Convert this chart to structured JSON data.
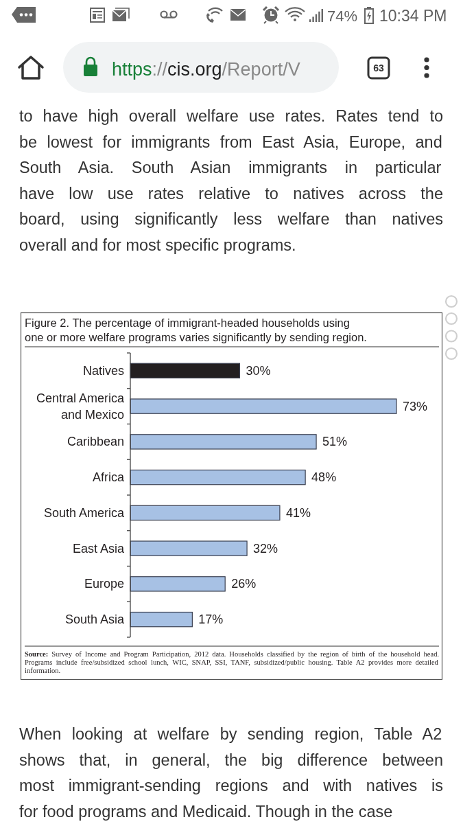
{
  "chart_data": {
    "type": "bar",
    "orientation": "horizontal",
    "title": "Figure 2. The percentage of immigrant-headed households using\none or more welfare programs varies significantly by sending region.",
    "categories": [
      "Natives",
      "Central America and Mexico",
      "Caribbean",
      "Africa",
      "South America",
      "East Asia",
      "Europe",
      "South Asia"
    ],
    "values": [
      30,
      73,
      51,
      48,
      41,
      32,
      26,
      17
    ],
    "colors": [
      "#231f20",
      "#a7c1e4",
      "#a7c1e4",
      "#a7c1e4",
      "#a7c1e4",
      "#a7c1e4",
      "#a7c1e4",
      "#a7c1e4"
    ],
    "value_labels": [
      "30%",
      "73%",
      "51%",
      "48%",
      "41%",
      "32%",
      "26%",
      "17%"
    ],
    "annotations": [
      "74%",
      "10:34 PM",
      "https://cis.org/Report/V",
      "63",
      "to have high overall welfare use rates. Rates tend to\nbe lowest for immigrants from East Asia, Europe, and\nSouth Asia. South Asian immigrants in particular\nhave low use rates relative to natives across the\nboard, using significantly less welfare than natives\noverall and for most specific programs.",
      "Source: Survey of Income and Program Participation, 2012 data. Households classified by the region of birth of the household head.\nPrograms include free/subsidized school lunch, WIC, SNAP, SSI, TANF, subsidized/public housing. Table A2 provides more detailed\ninformation.",
      "When looking at welfare by sending region, Table A2\nshows that, in general, the big difference between\nmost immigrant-sending regions and with natives is\nfor food programs and Medicaid. Though in the case"
    ]
  }
}
